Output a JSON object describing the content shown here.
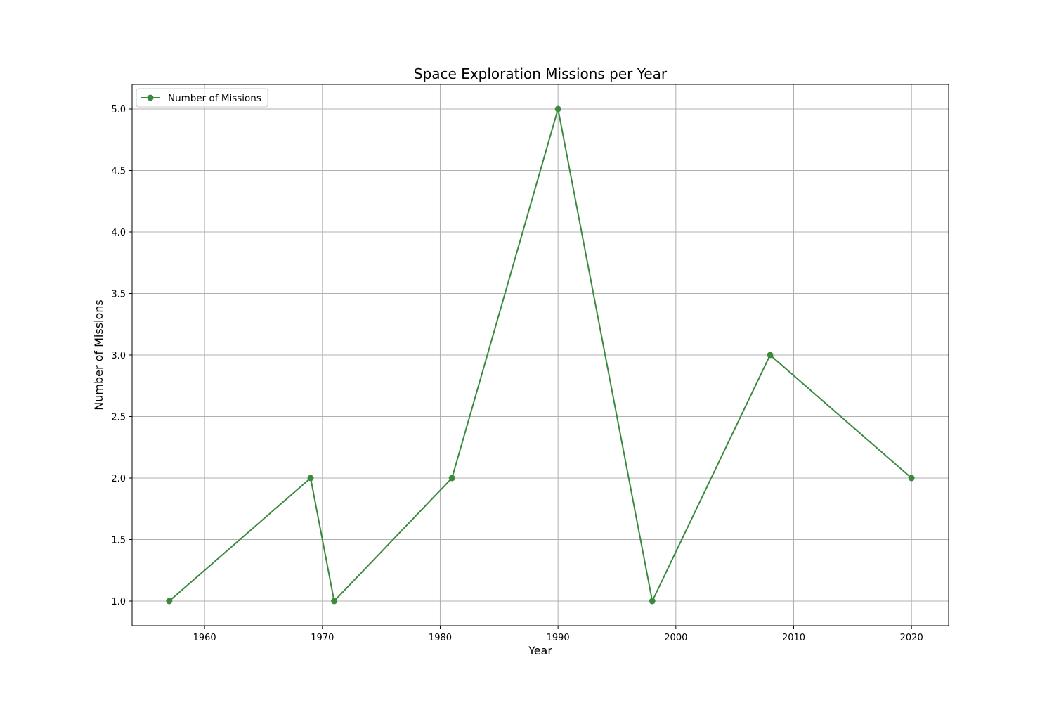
{
  "chart_data": {
    "type": "line",
    "title": "Space Exploration Missions per Year",
    "xlabel": "Year",
    "ylabel": "Number of Missions",
    "xlim": [
      1953.85,
      2023.15
    ],
    "ylim": [
      0.8,
      5.2
    ],
    "xticks": [
      1960,
      1970,
      1980,
      1990,
      2000,
      2010,
      2020
    ],
    "yticks": [
      1.0,
      1.5,
      2.0,
      2.5,
      3.0,
      3.5,
      4.0,
      4.5,
      5.0
    ],
    "grid": true,
    "legend_position": "upper-left",
    "series": [
      {
        "name": "Number of Missions",
        "color": "#3a8a3e",
        "marker": "circle",
        "x": [
          1957,
          1969,
          1971,
          1981,
          1990,
          1998,
          2008,
          2020
        ],
        "y": [
          1,
          2,
          1,
          2,
          5,
          1,
          3,
          2
        ]
      }
    ]
  }
}
